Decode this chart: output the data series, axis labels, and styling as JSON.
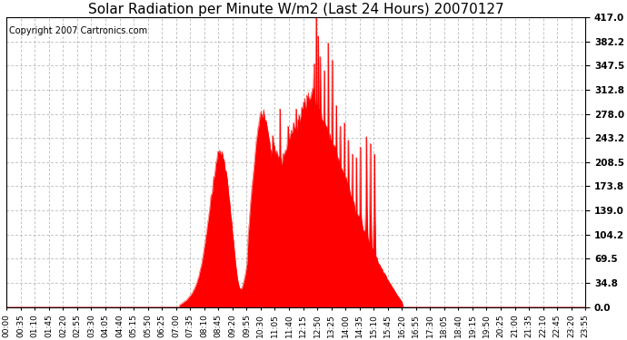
{
  "title": "Solar Radiation per Minute W/m2 (Last 24 Hours) 20070127",
  "copyright": "Copyright 2007 Cartronics.com",
  "yticks": [
    0.0,
    34.8,
    69.5,
    104.2,
    139.0,
    173.8,
    208.5,
    243.2,
    278.0,
    312.8,
    347.5,
    382.2,
    417.0
  ],
  "ymax": 417.0,
  "ymin": 0.0,
  "fill_color": "#FF0000",
  "line_color": "#FF0000",
  "bg_color": "#FFFFFF",
  "plot_bg_color": "#FFFFFF",
  "grid_color": "#AAAAAA",
  "dashed_line_color": "#FF0000",
  "title_fontsize": 11,
  "copyright_fontsize": 7,
  "xtick_fontsize": 6.5,
  "ytick_fontsize": 7.5,
  "xtick_labels": [
    "00:00",
    "00:35",
    "01:10",
    "01:45",
    "02:20",
    "02:55",
    "03:30",
    "04:05",
    "04:40",
    "05:15",
    "05:50",
    "06:25",
    "07:00",
    "07:35",
    "08:10",
    "08:45",
    "09:20",
    "09:55",
    "10:30",
    "11:05",
    "11:40",
    "12:15",
    "12:50",
    "13:25",
    "14:00",
    "14:35",
    "15:10",
    "15:45",
    "16:20",
    "16:55",
    "17:30",
    "18:05",
    "18:40",
    "19:15",
    "19:50",
    "20:25",
    "21:00",
    "21:35",
    "22:10",
    "22:45",
    "23:20",
    "23:55"
  ]
}
